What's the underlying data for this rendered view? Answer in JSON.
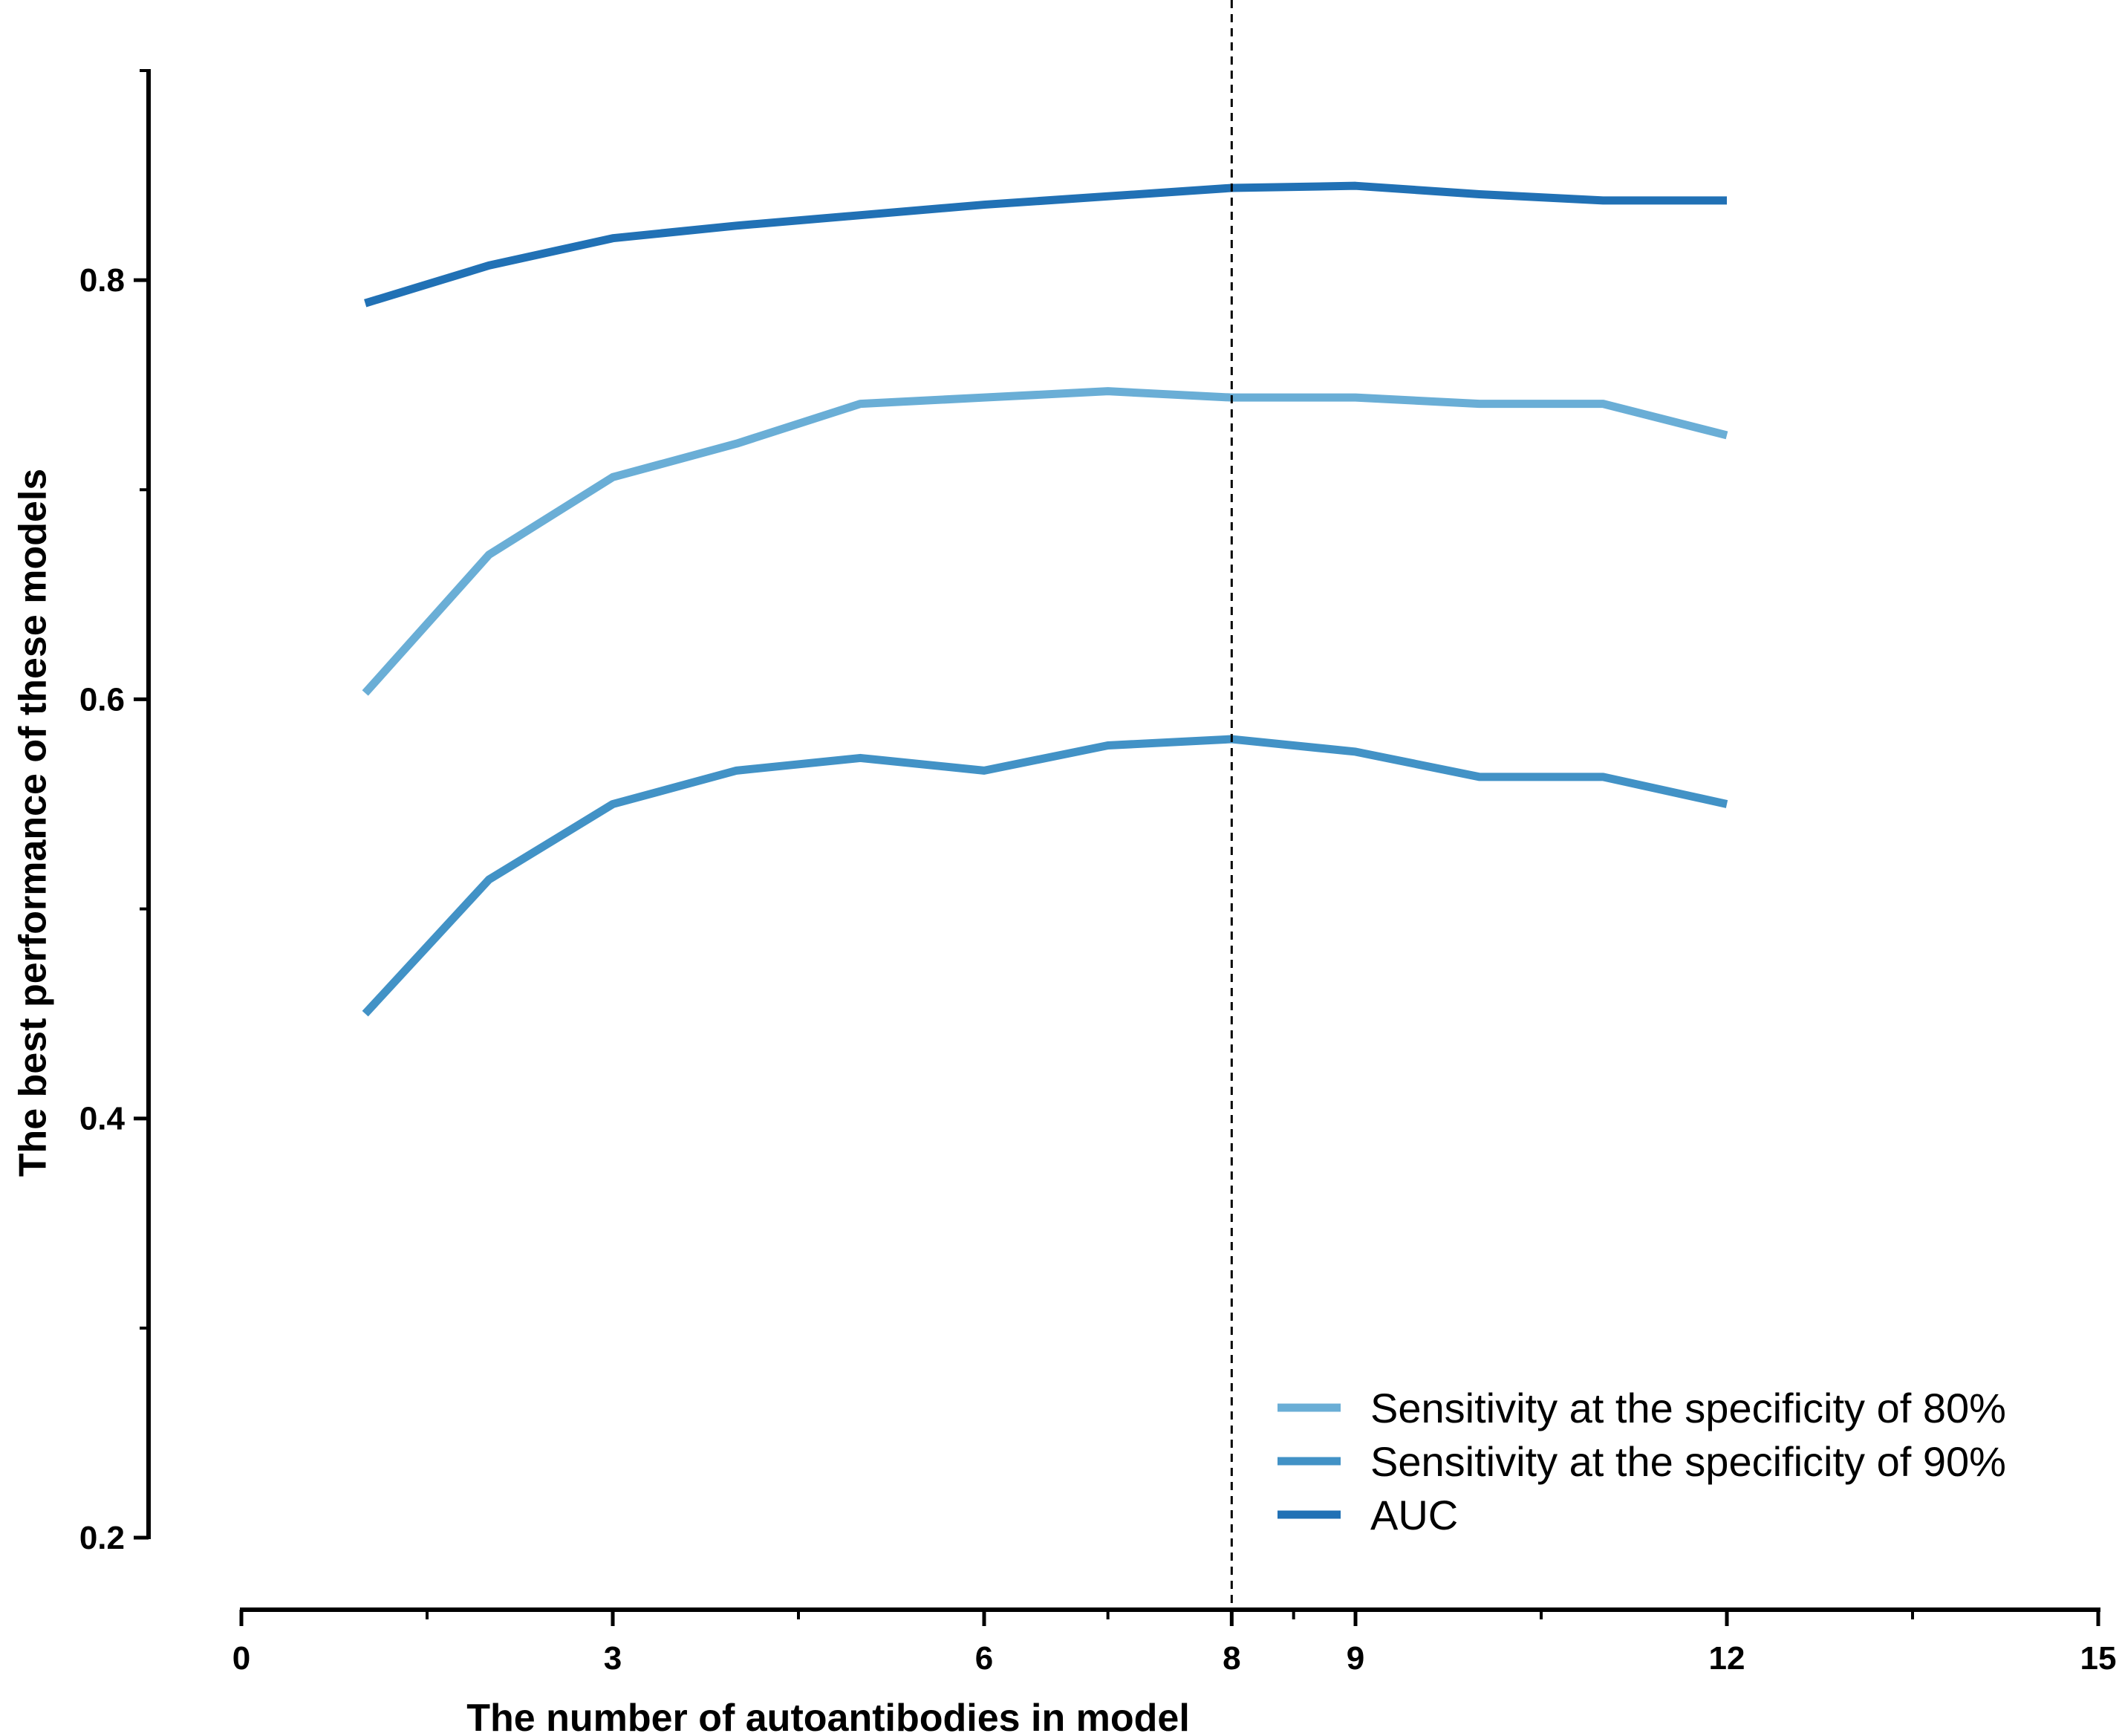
{
  "chart_data": {
    "type": "line",
    "xlabel": "The number of autoantibodies in model",
    "ylabel": "The best performance of these models",
    "xlim": [
      0,
      15
    ],
    "ylim": [
      0.2,
      0.9
    ],
    "x_ticks": [
      0,
      3,
      6,
      8,
      9,
      12,
      15
    ],
    "x_tick_labels": [
      "0",
      "3",
      "6",
      "8",
      "9",
      "12",
      "15"
    ],
    "x_minor_ticks": [
      1.5,
      4.5,
      7,
      8.5,
      10.5,
      13.5
    ],
    "y_ticks": [
      0.2,
      0.4,
      0.6,
      0.8
    ],
    "y_tick_labels": [
      "0.2",
      "0.4",
      "0.6",
      "0.8"
    ],
    "y_minor_ticks": [
      0.3,
      0.5,
      0.7,
      0.9
    ],
    "reference_line": {
      "x": 8,
      "style": "dashed"
    },
    "legend_position": "bottom-right",
    "grid": false,
    "x": [
      1,
      2,
      3,
      4,
      5,
      6,
      7,
      8,
      9,
      10,
      11,
      12
    ],
    "series": [
      {
        "name": "Sensitivity at the specificity of 80%",
        "color": "#6aaed6",
        "values": [
          0.603,
          0.669,
          0.706,
          0.722,
          0.741,
          0.744,
          0.747,
          0.744,
          0.744,
          0.741,
          0.741,
          0.726
        ]
      },
      {
        "name": "Sensitivity at the specificity of 90%",
        "color": "#4292c6",
        "values": [
          0.45,
          0.514,
          0.55,
          0.566,
          0.572,
          0.566,
          0.578,
          0.581,
          0.575,
          0.563,
          0.563,
          0.55
        ]
      },
      {
        "name": "AUC",
        "color": "#2171b5",
        "values": [
          0.789,
          0.807,
          0.82,
          0.826,
          0.831,
          0.836,
          0.84,
          0.844,
          0.845,
          0.841,
          0.838,
          0.838
        ]
      }
    ]
  }
}
